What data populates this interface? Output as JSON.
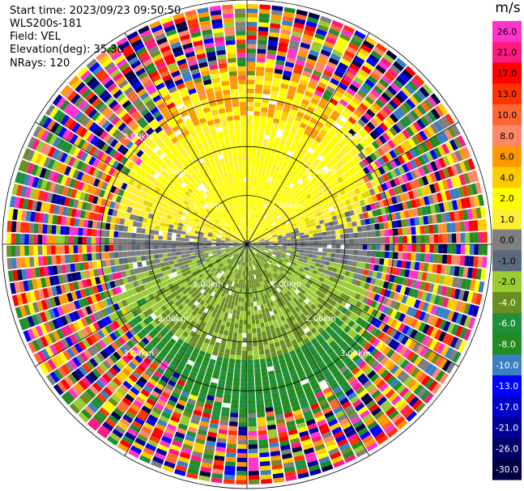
{
  "info": {
    "start_time": "Start time: 2023/09/23 09:50:50",
    "instrument": "WLS200s-181",
    "field": "Field: VEL",
    "elevation": "Elevation(deg): 35.30",
    "nrays": "NRays: 120"
  },
  "chart_data": {
    "type": "heatmap",
    "projection": "polar PPI (plan position indicator)",
    "nrays": 120,
    "range_rings_km": [
      1.0,
      2.0,
      3.0
    ],
    "range_labels": [
      "1.00km",
      "2.00km",
      "3.00km"
    ],
    "colorbar": {
      "title": "m/s",
      "ticks": [
        "26.0",
        "21.0",
        "17.0",
        "13.0",
        "10.0",
        "8.0",
        "6.0",
        "4.0",
        "2.0",
        "1.0",
        "0.0",
        "-1.0",
        "-2.0",
        "-4.0",
        "-6.0",
        "-8.0",
        "-10.0",
        "-13.0",
        "-17.0",
        "-21.0",
        "-26.0",
        "-30.0"
      ],
      "colors": [
        "#ff33cc",
        "#ff1a80",
        "#ff0000",
        "#ff3300",
        "#ff6633",
        "#ff8866",
        "#ff9900",
        "#ffcc00",
        "#ffff00",
        "#ffee33",
        "#7f7f7f",
        "#5a6a7a",
        "#99cc33",
        "#6b8e23",
        "#1f8f3a",
        "#228b22",
        "#3a7fc4",
        "#0000ff",
        "#0000cc",
        "#000099",
        "#000066",
        "#000044"
      ]
    },
    "description_values": {
      "near_range_north": "2.0 to 6.0 m/s (yellow to orange)",
      "near_range_east_west": "0.0 to 1.0 m/s (gray)",
      "near_range_south": "-1.0 to -6.0 m/s (green)",
      "far_range": "noise, all colors"
    }
  }
}
